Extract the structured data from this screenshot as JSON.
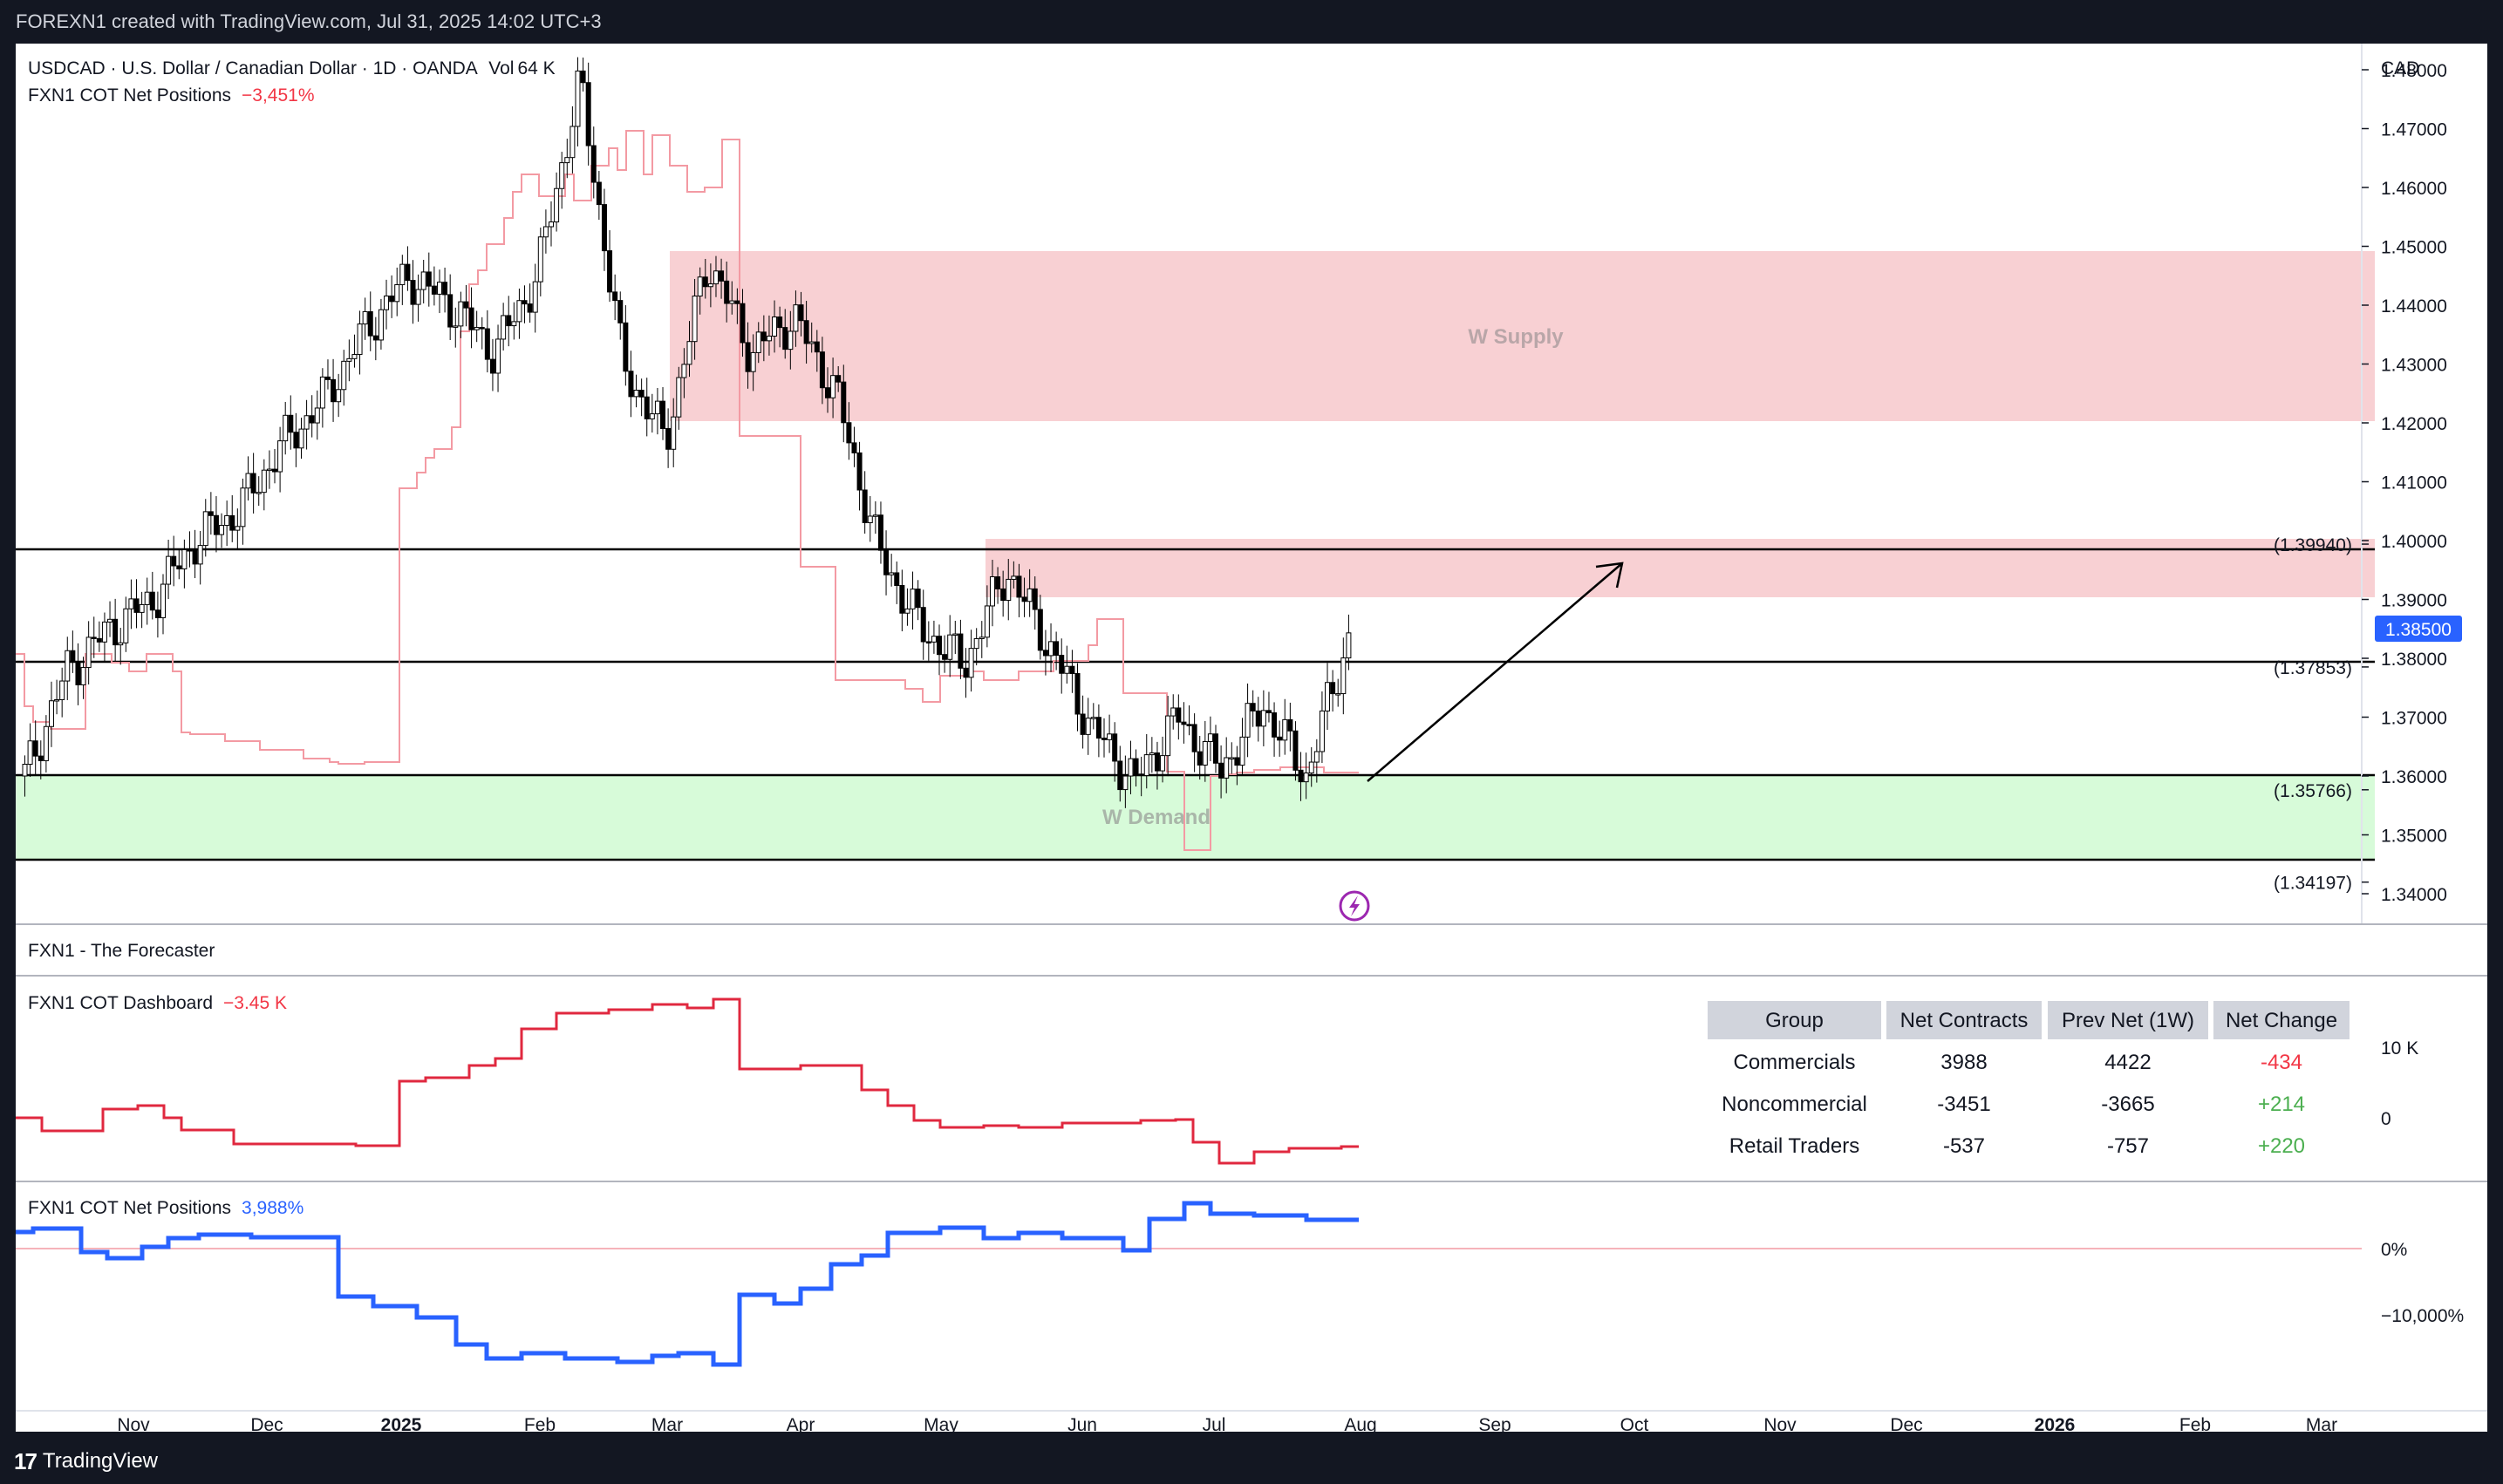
{
  "topbar": {
    "text": "FOREXN1 created with TradingView.com, Jul 31, 2025 14:02 UTC+3"
  },
  "footer": {
    "logo": "17",
    "brand": "TradingView"
  },
  "main_legend": {
    "symbol": "USDCAD · U.S. Dollar / Canadian Dollar · 1D · OANDA",
    "vol_label": "Vol",
    "vol_value": "64 K",
    "cot_overlay_label": "FXN1 COT Net Positions",
    "cot_overlay_value": "−3,451%"
  },
  "price_axis": {
    "currency": "CAD",
    "ticks": [
      "1.48000",
      "1.47000",
      "1.46000",
      "1.45000",
      "1.44000",
      "1.43000",
      "1.42000",
      "1.41000",
      "1.40000",
      "1.39000",
      "1.38000",
      "1.37000",
      "1.36000",
      "1.35000",
      "1.34000"
    ],
    "current_price": "1.38500"
  },
  "levels": [
    {
      "label": "(1.39940)",
      "price": 1.3994
    },
    {
      "label": "(1.37853)",
      "price": 1.37853
    },
    {
      "label": "(1.35766)",
      "price": 1.35766
    },
    {
      "label": "(1.34197)",
      "price": 1.34197
    }
  ],
  "zones": {
    "supply_label": "W Supply",
    "demand_label": "W Demand",
    "supply_color": "#f8d0d3",
    "demand_color": "#d7fbd9"
  },
  "forecaster": {
    "label": "FXN1 - The Forecaster"
  },
  "dashboard": {
    "label": "FXN1 COT Dashboard",
    "value": "−3.45 K",
    "axis_ticks": [
      "10 K",
      "0"
    ],
    "table": {
      "headers": [
        "Group",
        "Net Contracts",
        "Prev Net (1W)",
        "Net Change"
      ],
      "rows": [
        [
          "Commercials",
          "3988",
          "4422",
          "-434"
        ],
        [
          "Noncommercial",
          "-3451",
          "-3665",
          "+214"
        ],
        [
          "Retail Traders",
          "-537",
          "-757",
          "+220"
        ]
      ]
    }
  },
  "net_positions": {
    "label": "FXN1 COT Net Positions",
    "value": "3,988%",
    "axis_ticks": [
      "0%",
      "−10,000%"
    ]
  },
  "time_axis": [
    "Nov",
    "Dec",
    "2025",
    "Feb",
    "Mar",
    "Apr",
    "May",
    "Jun",
    "Jul",
    "Aug",
    "Sep",
    "Oct",
    "Nov",
    "Dec",
    "2026",
    "Feb",
    "Mar"
  ],
  "colors": {
    "up": "#ffffff",
    "down": "#000000",
    "accent_blue": "#2962ff",
    "red_line": "#e0283f",
    "negative": "#f23645",
    "positive": "#4caf50",
    "lightning": "#9c27b0"
  },
  "icons": {
    "alert": "lightning-icon"
  },
  "chart_data": {
    "type": "candlestick",
    "symbol": "USDCAD",
    "interval": "1D",
    "exchange": "OANDA",
    "ylim": [
      1.335,
      1.485
    ],
    "close_path": [
      [
        "Oct",
        1.36
      ],
      [
        "Oct",
        1.378
      ],
      [
        "Nov",
        1.385
      ],
      [
        "Nov",
        1.39
      ],
      [
        "Nov",
        1.4
      ],
      [
        "Dec",
        1.405
      ],
      [
        "Dec",
        1.416
      ],
      [
        "Dec",
        1.424
      ],
      [
        "Dec",
        1.436
      ],
      [
        "2025",
        1.445
      ],
      [
        "2025",
        1.44
      ],
      [
        "2025",
        1.432
      ],
      [
        "Feb",
        1.445
      ],
      [
        "Feb",
        1.478
      ],
      [
        "Feb",
        1.43
      ],
      [
        "Mar",
        1.417
      ],
      [
        "Mar",
        1.448
      ],
      [
        "Mar",
        1.432
      ],
      [
        "Apr",
        1.438
      ],
      [
        "Apr",
        1.425
      ],
      [
        "Apr",
        1.398
      ],
      [
        "May",
        1.385
      ],
      [
        "May",
        1.379
      ],
      [
        "May",
        1.395
      ],
      [
        "Jun",
        1.382
      ],
      [
        "Jun",
        1.368
      ],
      [
        "Jun",
        1.359
      ],
      [
        "Jul",
        1.37
      ],
      [
        "Jul",
        1.361
      ],
      [
        "Jul",
        1.372
      ],
      [
        "Aug",
        1.36
      ],
      [
        "Aug",
        1.3835
      ]
    ],
    "forecast_arrow": {
      "from": 1.358,
      "to": 1.397
    }
  }
}
